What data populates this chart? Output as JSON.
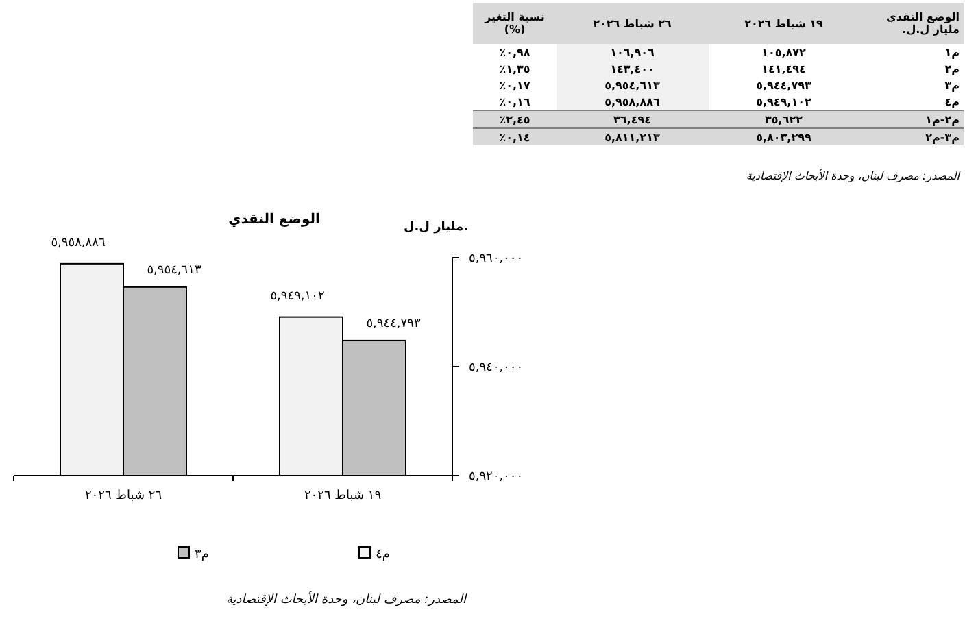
{
  "chart_data": [
    {
      "type": "other",
      "annotations": [
        "الوضع النقدي مليار ل.ل.",
        "١٩ شباط ٢٠٢٦",
        "٢٦ شباط ٢٠٢٦",
        "نسبة التغير (%)",
        "م١",
        "١٠٥,٨٧٢",
        "١٠٦,٩٠٦",
        "٠,٩٨٪",
        "م٢",
        "١٤١,٤٩٤",
        "١٤٣,٤٠٠",
        "١,٣٥٪",
        "م٣",
        "٥,٩٤٤,٧٩٣",
        "٥,٩٥٤,٦١٣",
        "٠,١٧٪",
        "م٤",
        "٥,٩٤٩,١٠٢",
        "٥,٩٥٨,٨٨٦",
        "٠,١٦٪",
        "م٢-م١",
        "٣٥,٦٢٢",
        "٣٦,٤٩٤",
        "٢,٤٥٪",
        "م٣-م٢",
        "٥,٨٠٣,٢٩٩",
        "٥,٨١١,٢١٣",
        "٠,١٤٪",
        "المصدر: مصرف لبنان، وحدة الأبحاث الإقتصادية"
      ]
    },
    {
      "type": "bar",
      "title": "الوضع النقدي",
      "ylabel": "مليار ل.ل.",
      "categories": [
        "٢٦ شباط ٢٠٢٦",
        "١٩ شباط ٢٠٢٦"
      ],
      "series": [
        {
          "name": "م٤",
          "color": "#f2f2f2",
          "values": [
            5958886,
            5949102
          ],
          "value_labels": [
            "٥,٩٥٨,٨٨٦",
            "٥,٩٤٩,١٠٢"
          ]
        },
        {
          "name": "م٣",
          "color": "#c0c0c0",
          "values": [
            5954613,
            5944793
          ],
          "value_labels": [
            "٥,٩٥٤,٦١٣",
            "٥,٩٤٤,٧٩٣"
          ]
        }
      ],
      "ylim": [
        5920000,
        5960000
      ],
      "yticks": [
        {
          "value": 5920000,
          "label": "٥,٩٢٠,٠٠٠"
        },
        {
          "value": 5940000,
          "label": "٥,٩٤٠,٠٠٠"
        },
        {
          "value": 5960000,
          "label": "٥,٩٦٠,٠٠٠"
        }
      ],
      "grid": false,
      "legend": "bottom",
      "annotations": [
        "المصدر: مصرف لبنان، وحدة الأبحاث الإقتصادية"
      ]
    }
  ]
}
